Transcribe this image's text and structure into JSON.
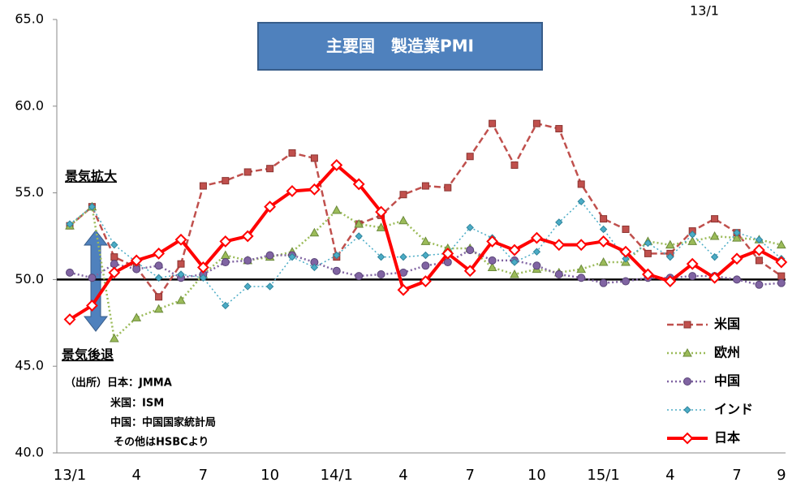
{
  "chart_data": {
    "type": "line",
    "title": "主要国　製造業PMI",
    "corner_label": "13/1",
    "annotations": [
      "景気拡大",
      "景気後退"
    ],
    "source": [
      "（出所）日本：JMMA",
      "米国：ISM",
      "中国：中国国家統計局",
      "その他はHSBCより"
    ],
    "categories": [
      "13/1",
      null,
      null,
      "4",
      null,
      null,
      "7",
      null,
      null,
      "10",
      null,
      null,
      "14/1",
      null,
      null,
      "4",
      null,
      null,
      "7",
      null,
      null,
      "10",
      null,
      null,
      "15/1",
      null,
      null,
      "4",
      null,
      null,
      "7",
      null,
      "9"
    ],
    "ylim": [
      40,
      65
    ],
    "yticks": [
      {
        "value": 40,
        "label": "40.0"
      },
      {
        "value": 45,
        "label": "45.0"
      },
      {
        "value": 50,
        "label": "50.0"
      },
      {
        "value": 55,
        "label": "55.0"
      },
      {
        "value": 60,
        "label": "60.0"
      },
      {
        "value": 65,
        "label": "65.0"
      }
    ],
    "reference_line": 50,
    "legend": "lower right",
    "series": [
      {
        "name": "米国",
        "color": "#c0504d",
        "marker": "square",
        "dash": "8,4",
        "width": 2.5,
        "values": [
          53.1,
          54.2,
          51.3,
          50.7,
          49.0,
          50.9,
          55.4,
          55.7,
          56.2,
          56.4,
          57.3,
          57.0,
          51.3,
          53.2,
          53.7,
          54.9,
          55.4,
          55.3,
          57.1,
          59.0,
          56.6,
          59.0,
          58.7,
          55.5,
          53.5,
          52.9,
          51.5,
          51.5,
          52.8,
          53.5,
          52.7,
          51.1,
          50.2
        ]
      },
      {
        "name": "欧州",
        "color": "#9bbb59",
        "marker": "triangle",
        "dash": "2,3",
        "width": 2.5,
        "values": [
          53.1,
          54.2,
          46.6,
          47.8,
          48.3,
          48.8,
          50.3,
          51.4,
          51.1,
          51.3,
          51.6,
          52.7,
          54.0,
          53.2,
          53.0,
          53.4,
          52.2,
          51.8,
          51.8,
          50.7,
          50.3,
          50.6,
          50.4,
          50.6,
          51.0,
          51.0,
          52.2,
          52.0,
          52.2,
          52.5,
          52.4,
          52.3,
          52.0
        ]
      },
      {
        "name": "中国",
        "color": "#8064a2",
        "marker": "circle",
        "dash": "2,3",
        "width": 2.5,
        "values": [
          50.4,
          50.1,
          50.9,
          50.6,
          50.8,
          50.1,
          50.3,
          51.0,
          51.1,
          51.4,
          51.4,
          51.0,
          50.5,
          50.2,
          50.3,
          50.4,
          50.8,
          51.0,
          51.7,
          51.1,
          51.1,
          50.8,
          50.3,
          50.1,
          49.8,
          49.9,
          50.1,
          50.1,
          50.2,
          50.2,
          50.0,
          49.7,
          49.8
        ]
      },
      {
        "name": "インド",
        "color": "#4bacc6",
        "marker": "diamond",
        "dash": "2,3",
        "width": 1.5,
        "values": [
          53.2,
          54.2,
          52.0,
          51.0,
          50.1,
          50.3,
          50.1,
          48.5,
          49.6,
          49.6,
          51.3,
          50.7,
          51.4,
          52.5,
          51.3,
          51.3,
          51.4,
          51.5,
          53.0,
          52.4,
          51.0,
          51.6,
          53.3,
          54.5,
          52.9,
          51.2,
          52.1,
          51.3,
          52.6,
          51.3,
          52.7,
          52.3,
          51.2
        ]
      },
      {
        "name": "日本",
        "color": "#ff0000",
        "marker": "open-diamond",
        "dash": "",
        "width": 4,
        "values": [
          47.7,
          48.5,
          50.4,
          51.1,
          51.5,
          52.3,
          50.7,
          52.2,
          52.5,
          54.2,
          55.1,
          55.2,
          56.6,
          55.5,
          53.9,
          49.4,
          49.9,
          51.5,
          50.5,
          52.2,
          51.7,
          52.4,
          52.0,
          52.0,
          52.2,
          51.6,
          50.3,
          49.9,
          50.9,
          50.1,
          51.2,
          51.7,
          51.0
        ]
      }
    ]
  }
}
